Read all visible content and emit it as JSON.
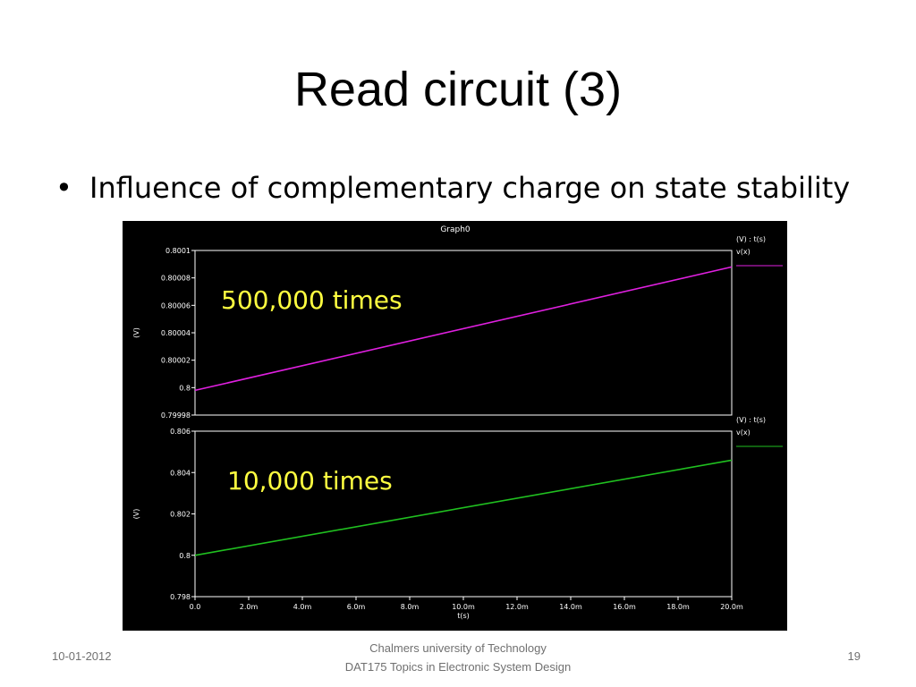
{
  "slide": {
    "title": "Read circuit (3)",
    "bullet": "Influence of complementary charge on state stability"
  },
  "footer": {
    "date": "10-01-2012",
    "org": "Chalmers university of Technology",
    "course": "DAT175 Topics in Electronic System Design",
    "page": "19"
  },
  "chart_data": [
    {
      "type": "line",
      "title": "Graph0",
      "ylabel": "(V)",
      "legend_header": "(V) : t(s)",
      "legend_position": "top-right",
      "annotation": "500,000 times",
      "background": "#000000",
      "grid": false,
      "ylim": [
        0.79998,
        0.8001
      ],
      "yticks": [
        0.79998,
        0.8,
        0.80002,
        0.80004,
        0.80006,
        0.80008,
        0.8001
      ],
      "ytick_labels": [
        "0.79998",
        "0.8",
        "0.80002",
        "0.80004",
        "0.80006",
        "0.80008",
        "0.8001"
      ],
      "xlim": [
        0,
        0.02
      ],
      "series": [
        {
          "name": "v(x)",
          "color": "#e020e0",
          "x": [
            0,
            0.02
          ],
          "y": [
            0.799998,
            0.800088
          ]
        }
      ]
    },
    {
      "type": "line",
      "ylabel": "(V)",
      "legend_header": "(V) : t(s)",
      "legend_position": "top-right",
      "annotation": "10,000 times",
      "background": "#000000",
      "grid": false,
      "ylim": [
        0.798,
        0.806
      ],
      "yticks": [
        0.798,
        0.8,
        0.802,
        0.804,
        0.806
      ],
      "ytick_labels": [
        "0.798",
        "0.8",
        "0.802",
        "0.804",
        "0.806"
      ],
      "xlim": [
        0,
        0.02
      ],
      "xlabel": "t(s)",
      "xticks": [
        0,
        0.002,
        0.004,
        0.006,
        0.008,
        0.01,
        0.012,
        0.014,
        0.016,
        0.018,
        0.02
      ],
      "xtick_labels": [
        "0.0",
        "2.0m",
        "4.0m",
        "6.0m",
        "8.0m",
        "10.0m",
        "12.0m",
        "14.0m",
        "16.0m",
        "18.0m",
        "20.0m"
      ],
      "series": [
        {
          "name": "v(x)",
          "color": "#20c020",
          "x": [
            0,
            0.02
          ],
          "y": [
            0.8,
            0.8046
          ]
        }
      ]
    }
  ]
}
